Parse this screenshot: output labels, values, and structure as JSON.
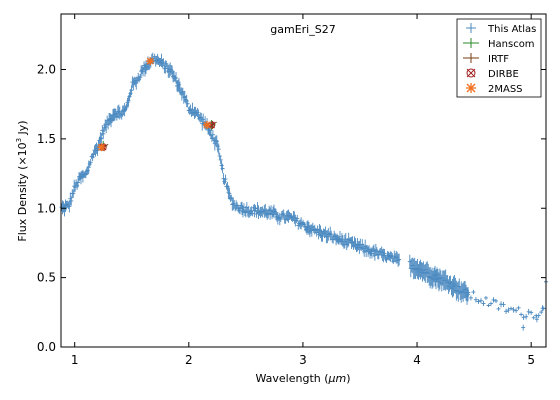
{
  "chart_data": {
    "type": "scatter",
    "title": "gamEri_S27",
    "xlabel_main": "Wavelength (",
    "xlabel_unit": "μm",
    "xlabel_close": ")",
    "ylabel_main": "Flux Density (×10",
    "ylabel_exp": "3",
    "ylabel_unit": " Jy)",
    "xlim": [
      0.88,
      5.13
    ],
    "ylim": [
      0.0,
      2.4
    ],
    "xticks": [
      {
        "v": 1,
        "label": "1"
      },
      {
        "v": 2,
        "label": "2"
      },
      {
        "v": 3,
        "label": "3"
      },
      {
        "v": 4,
        "label": "4"
      },
      {
        "v": 5,
        "label": "5"
      }
    ],
    "yticks": [
      {
        "v": 0.0,
        "label": "0.0"
      },
      {
        "v": 0.5,
        "label": "0.5"
      },
      {
        "v": 1.0,
        "label": "1.0"
      },
      {
        "v": 1.5,
        "label": "1.5"
      },
      {
        "v": 2.0,
        "label": "2.0"
      }
    ],
    "grid": false,
    "legend_position": "top-right",
    "colors": {
      "atlas": "#4a89c0",
      "hanscom": "#2a8a2a",
      "irtf": "#7a3d10",
      "dirbe": "#a02020",
      "twomass": "#f07020"
    },
    "legend": [
      {
        "key": "atlas",
        "label": "This Atlas"
      },
      {
        "key": "hanscom",
        "label": "Hanscom"
      },
      {
        "key": "irtf",
        "label": "IRTF"
      },
      {
        "key": "dirbe",
        "label": "DIRBE"
      },
      {
        "key": "twomass",
        "label": "2MASS"
      }
    ],
    "anchors": [
      [
        0.9,
        1.0
      ],
      [
        0.95,
        1.02
      ],
      [
        1.0,
        1.15
      ],
      [
        1.05,
        1.22
      ],
      [
        1.1,
        1.24
      ],
      [
        1.15,
        1.37
      ],
      [
        1.2,
        1.44
      ],
      [
        1.25,
        1.56
      ],
      [
        1.3,
        1.63
      ],
      [
        1.35,
        1.69
      ],
      [
        1.4,
        1.68
      ],
      [
        1.45,
        1.71
      ],
      [
        1.5,
        1.88
      ],
      [
        1.55,
        1.93
      ],
      [
        1.6,
        2.0
      ],
      [
        1.65,
        2.05
      ],
      [
        1.7,
        2.08
      ],
      [
        1.75,
        2.05
      ],
      [
        1.8,
        2.02
      ],
      [
        1.85,
        1.98
      ],
      [
        1.9,
        1.9
      ],
      [
        1.95,
        1.82
      ],
      [
        2.0,
        1.72
      ],
      [
        2.05,
        1.7
      ],
      [
        2.1,
        1.65
      ],
      [
        2.15,
        1.6
      ],
      [
        2.2,
        1.53
      ],
      [
        2.25,
        1.45
      ],
      [
        2.3,
        1.25
      ],
      [
        2.35,
        1.1
      ],
      [
        2.4,
        1.02
      ],
      [
        2.5,
        0.99
      ],
      [
        2.6,
        0.98
      ],
      [
        2.7,
        0.97
      ],
      [
        2.8,
        0.94
      ],
      [
        2.9,
        0.93
      ],
      [
        3.0,
        0.88
      ],
      [
        3.1,
        0.84
      ],
      [
        3.2,
        0.81
      ],
      [
        3.3,
        0.78
      ],
      [
        3.4,
        0.75
      ],
      [
        3.5,
        0.72
      ],
      [
        3.6,
        0.69
      ],
      [
        3.7,
        0.66
      ],
      [
        3.8,
        0.63
      ],
      [
        3.9,
        0.61
      ],
      [
        4.0,
        0.57
      ],
      [
        4.1,
        0.53
      ],
      [
        4.2,
        0.49
      ],
      [
        4.3,
        0.45
      ],
      [
        4.4,
        0.4
      ],
      [
        4.5,
        0.36
      ],
      [
        4.6,
        0.33
      ],
      [
        4.7,
        0.3
      ],
      [
        4.8,
        0.27
      ],
      [
        4.9,
        0.25
      ],
      [
        5.0,
        0.24
      ],
      [
        5.1,
        0.26
      ]
    ],
    "atlas_gaps": [
      [
        3.85,
        3.93
      ]
    ],
    "atlas_sparse": [
      4.45,
      5.13
    ],
    "twomass": [
      [
        1.235,
        1.44
      ],
      [
        1.662,
        2.06
      ],
      [
        2.159,
        1.6
      ]
    ],
    "dirbe": [
      [
        1.25,
        1.44
      ],
      [
        2.2,
        1.6
      ]
    ],
    "hanscom": [
      [
        1.25,
        1.45
      ],
      [
        2.2,
        1.6
      ]
    ],
    "irtf": [
      [
        1.25,
        1.44
      ],
      [
        2.2,
        1.6
      ]
    ],
    "outliers": [
      [
        4.93,
        0.14
      ],
      [
        5.13,
        0.47
      ],
      [
        5.1,
        0.28
      ],
      [
        5.05,
        0.2
      ]
    ]
  }
}
